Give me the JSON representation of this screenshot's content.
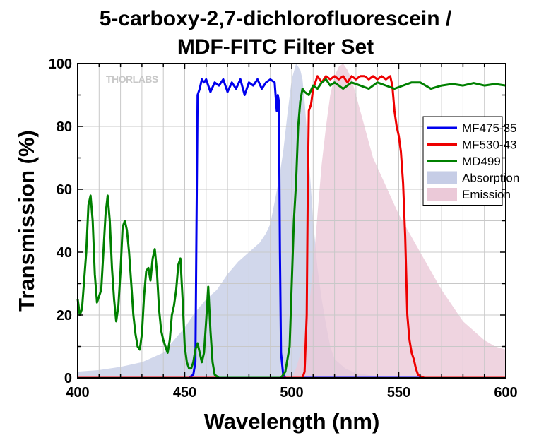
{
  "title_line1": "5-carboxy-2,7-dichlorofluorescein /",
  "title_line2": "MDF-FITC Filter Set",
  "watermark": "THORLABS",
  "chart_data": {
    "type": "line",
    "title": "5-carboxy-2,7-dichlorofluorescein / MDF-FITC Filter Set",
    "xlabel": "Wavelength (nm)",
    "ylabel": "Transmission (%)",
    "xlim": [
      400,
      600
    ],
    "ylim": [
      0,
      100
    ],
    "xticks": [
      400,
      450,
      500,
      550,
      600
    ],
    "yticks": [
      0,
      20,
      40,
      60,
      80,
      100
    ],
    "grid": true,
    "legend_position": "right",
    "series": [
      {
        "name": "MF475-35",
        "kind": "line",
        "color": "#0000ee",
        "x": [
          400,
          452,
          454,
          455,
          455.5,
          456,
          457,
          458,
          459,
          460,
          462,
          464,
          466,
          468,
          470,
          472,
          474,
          476,
          478,
          480,
          482,
          484,
          486,
          488,
          490,
          492,
          493,
          493.5,
          494,
          494.5,
          495,
          496,
          497,
          500,
          600
        ],
        "y": [
          0,
          0,
          1,
          5,
          50,
          90,
          92,
          95,
          94,
          95,
          91,
          94,
          93,
          95,
          91,
          94,
          92,
          95,
          90,
          94,
          93,
          95,
          92,
          94,
          95,
          94,
          85,
          90,
          88,
          40,
          8,
          1,
          0,
          0,
          0
        ]
      },
      {
        "name": "MF530-43",
        "kind": "line",
        "color": "#ee0000",
        "x": [
          400,
          505,
          506,
          507,
          507.5,
          508,
          509,
          510,
          512,
          514,
          516,
          518,
          520,
          522,
          524,
          526,
          528,
          530,
          532,
          534,
          536,
          538,
          540,
          542,
          544,
          546,
          547,
          548,
          549,
          550,
          551,
          552,
          553,
          554,
          555,
          556,
          557,
          558,
          559,
          560,
          562,
          600
        ],
        "y": [
          0,
          0,
          2,
          20,
          60,
          85,
          87,
          92,
          96,
          94,
          96,
          95,
          96,
          95,
          96,
          94,
          96,
          95,
          96,
          96,
          95,
          96,
          95,
          96,
          95,
          96,
          93,
          85,
          80,
          77,
          72,
          62,
          45,
          20,
          12,
          8,
          6,
          3,
          1,
          0.5,
          0,
          0
        ]
      },
      {
        "name": "MD499",
        "kind": "line",
        "color": "#008000",
        "x": [
          400,
          401,
          402,
          404,
          405,
          406,
          407,
          408,
          409,
          411,
          413,
          414,
          415,
          416,
          417,
          418,
          419,
          420,
          421,
          422,
          423,
          424,
          425,
          426,
          427,
          428,
          429,
          430,
          431,
          432,
          433,
          434,
          435,
          436,
          437,
          438,
          439,
          440,
          441,
          442,
          443,
          444,
          445,
          446,
          447,
          448,
          449,
          450,
          451,
          452,
          453,
          454,
          455,
          456,
          457,
          458,
          459,
          460,
          461,
          462,
          463,
          464,
          466,
          470,
          480,
          490,
          495,
          497,
          499,
          500,
          501,
          502,
          503,
          504,
          505,
          506,
          508,
          510,
          512,
          514,
          516,
          518,
          520,
          524,
          528,
          532,
          536,
          540,
          544,
          548,
          552,
          556,
          560,
          565,
          570,
          575,
          580,
          585,
          590,
          595,
          600
        ],
        "y": [
          25,
          20,
          22,
          40,
          55,
          58,
          50,
          33,
          24,
          28,
          52,
          58,
          50,
          35,
          25,
          18,
          23,
          34,
          48,
          50,
          47,
          40,
          30,
          20,
          14,
          10,
          9,
          14,
          26,
          34,
          35,
          31,
          38,
          41,
          34,
          22,
          15,
          12,
          10,
          8,
          12,
          20,
          23,
          28,
          36,
          38,
          25,
          10,
          5,
          3,
          3,
          5,
          9,
          11,
          8,
          5,
          8,
          18,
          29,
          15,
          5,
          1,
          0,
          0,
          0,
          0,
          0,
          2,
          10,
          30,
          50,
          62,
          80,
          88,
          92,
          91,
          90,
          93,
          92,
          94,
          95,
          93,
          94,
          92,
          94,
          93,
          92,
          94,
          93,
          92,
          93,
          94,
          94,
          92,
          93,
          93.5,
          93,
          93.8,
          93,
          93.5,
          93
        ]
      },
      {
        "name": "Absorption",
        "kind": "area",
        "color": "#c6cde6",
        "x": [
          400,
          410,
          420,
          430,
          440,
          445,
          450,
          455,
          460,
          465,
          470,
          475,
          480,
          485,
          488,
          490,
          492,
          494,
          496,
          498,
          500,
          502,
          504,
          505,
          506,
          508,
          510,
          512,
          514,
          516,
          518,
          520,
          525,
          530,
          540,
          550,
          560,
          600
        ],
        "y": [
          2,
          2.5,
          3.5,
          5,
          8,
          12,
          16,
          21,
          25,
          28,
          33,
          37,
          40,
          43,
          46,
          49,
          56,
          63,
          72,
          84,
          95,
          100,
          98,
          95,
          88,
          70,
          50,
          35,
          25,
          17,
          10,
          6,
          3,
          1.5,
          0.5,
          0,
          0,
          0
        ]
      },
      {
        "name": "Emission",
        "kind": "area",
        "color": "#ebc9d8",
        "x": [
          400,
          500,
          502,
          505,
          508,
          510,
          512,
          514,
          516,
          518,
          520,
          522,
          524,
          526,
          528,
          530,
          534,
          538,
          542,
          546,
          550,
          555,
          560,
          565,
          570,
          575,
          580,
          585,
          590,
          595,
          600
        ],
        "y": [
          0,
          0,
          3,
          10,
          22,
          35,
          52,
          68,
          80,
          90,
          96,
          99,
          100,
          98,
          95,
          90,
          80,
          70,
          64,
          58,
          52,
          46,
          40,
          34,
          28,
          23,
          18,
          15,
          12,
          10,
          9
        ]
      }
    ]
  }
}
